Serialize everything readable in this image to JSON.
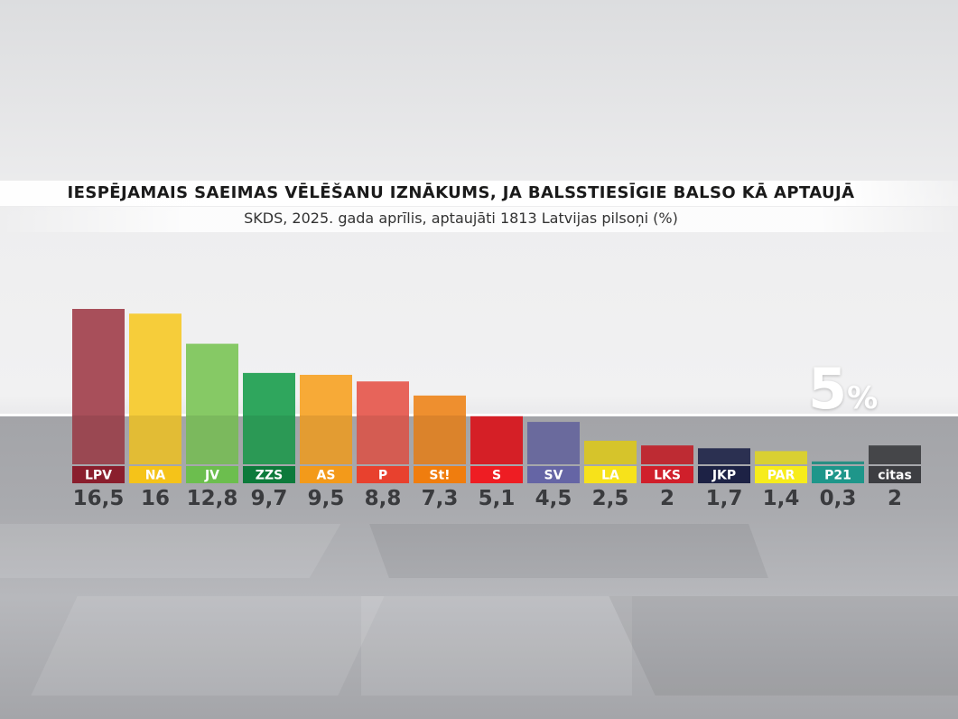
{
  "chart_data": {
    "type": "bar",
    "title": "IESPĒJAMAIS SAEIMAS VĒLĒŠANU IZNĀKUMS, JA BALSSTIESĪGIE BALSO KĀ APTAUJĀ",
    "subtitle": "SKDS, 2025. gada aprīlis, aptaujāti 1813 Latvijas pilsoņi (%)",
    "threshold": {
      "value": 5,
      "label_number": "5",
      "label_unit": "%"
    },
    "ylim": [
      0,
      16.5
    ],
    "categories": [
      "LPV",
      "NA",
      "JV",
      "ZZS",
      "AS",
      "P",
      "St!",
      "S",
      "SV",
      "LA",
      "LKS",
      "JKP",
      "PAR",
      "P21",
      "citas"
    ],
    "values": [
      16.5,
      16,
      12.8,
      9.7,
      9.5,
      8.8,
      7.3,
      5.1,
      4.5,
      2.5,
      2,
      1.7,
      1.4,
      0.3,
      2
    ],
    "value_labels": [
      "16,5",
      "16",
      "12,8",
      "9,7",
      "9,5",
      "8,8",
      "7,3",
      "5,1",
      "4,5",
      "2,5",
      "2",
      "1,7",
      "1,4",
      "0,3",
      "2"
    ],
    "colors": [
      "#a84f5a",
      "#f6cd3a",
      "#86c965",
      "#2fa65d",
      "#f7aa37",
      "#e7645a",
      "#ee8f2f",
      "#e8222a",
      "#7473ab",
      "#e9d52f",
      "#cf2f38",
      "#2f3558",
      "#ece237",
      "#2d9b8f",
      "#4b4c50"
    ],
    "label_bg_colors": [
      "#8a1e2d",
      "#f5c319",
      "#6cbe4e",
      "#0d7a3b",
      "#f39a1a",
      "#e8412e",
      "#f07d0e",
      "#ee1d23",
      "#6565a5",
      "#f7e21a",
      "#d01f2b",
      "#1d2245",
      "#f7ec1b",
      "#1e968a",
      "#3d3e42"
    ],
    "legend": "none",
    "grid": false
  }
}
